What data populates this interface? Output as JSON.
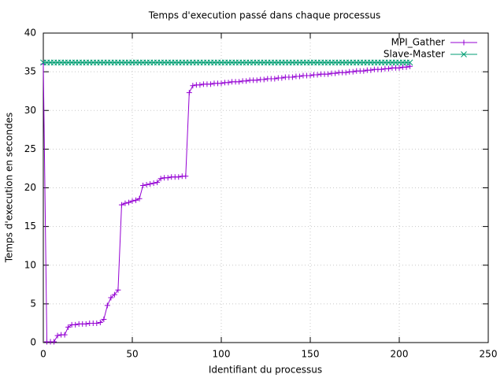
{
  "chart_data": {
    "type": "line",
    "title": "Temps d'execution passé dans chaque processus",
    "x_label": "Identifiant du processus",
    "y_label": "Temps d'execution en secondes",
    "x": [
      0,
      2,
      4,
      6,
      8,
      10,
      12,
      14,
      16,
      18,
      20,
      22,
      24,
      26,
      28,
      30,
      32,
      34,
      36,
      38,
      40,
      42,
      44,
      46,
      48,
      50,
      52,
      54,
      56,
      58,
      60,
      62,
      64,
      66,
      68,
      70,
      72,
      74,
      76,
      78,
      80,
      82,
      84,
      86,
      88,
      90,
      92,
      94,
      96,
      98,
      100,
      102,
      104,
      106,
      108,
      110,
      112,
      114,
      116,
      118,
      120,
      122,
      124,
      126,
      128,
      130,
      132,
      134,
      136,
      138,
      140,
      142,
      144,
      146,
      148,
      150,
      152,
      154,
      156,
      158,
      160,
      162,
      164,
      166,
      168,
      170,
      172,
      174,
      176,
      178,
      180,
      182,
      184,
      186,
      188,
      190,
      192,
      194,
      196,
      198,
      200,
      202,
      204,
      206
    ],
    "series": [
      {
        "name": "MPI_Gather",
        "color": "#9400d3",
        "marker": "plus",
        "values": [
          36,
          0.1,
          0.1,
          0.1,
          0.9,
          1.0,
          1.0,
          2.0,
          2.3,
          2.3,
          2.4,
          2.4,
          2.4,
          2.5,
          2.5,
          2.5,
          2.6,
          3.0,
          4.8,
          5.8,
          6.2,
          6.8,
          17.8,
          18.0,
          18.1,
          18.3,
          18.4,
          18.6,
          20.3,
          20.4,
          20.5,
          20.6,
          20.7,
          21.2,
          21.3,
          21.3,
          21.4,
          21.4,
          21.4,
          21.5,
          21.5,
          32.3,
          33.2,
          33.3,
          33.3,
          33.4,
          33.4,
          33.4,
          33.5,
          33.5,
          33.5,
          33.6,
          33.6,
          33.7,
          33.7,
          33.7,
          33.8,
          33.8,
          33.9,
          33.9,
          33.9,
          34.0,
          34.0,
          34.1,
          34.1,
          34.1,
          34.2,
          34.2,
          34.3,
          34.3,
          34.3,
          34.4,
          34.4,
          34.5,
          34.5,
          34.5,
          34.6,
          34.6,
          34.7,
          34.7,
          34.7,
          34.8,
          34.8,
          34.9,
          34.9,
          34.9,
          35.0,
          35.0,
          35.1,
          35.1,
          35.1,
          35.2,
          35.2,
          35.3,
          35.3,
          35.3,
          35.4,
          35.4,
          35.5,
          35.5,
          35.5,
          35.6,
          35.6,
          35.7
        ]
      },
      {
        "name": "Slave-Master",
        "color": "#009e73",
        "marker": "cross",
        "values": [
          36.2,
          36.2,
          36.2,
          36.2,
          36.2,
          36.2,
          36.2,
          36.2,
          36.2,
          36.2,
          36.2,
          36.2,
          36.2,
          36.2,
          36.2,
          36.2,
          36.2,
          36.2,
          36.2,
          36.2,
          36.2,
          36.2,
          36.2,
          36.2,
          36.2,
          36.2,
          36.2,
          36.2,
          36.2,
          36.2,
          36.2,
          36.2,
          36.2,
          36.2,
          36.2,
          36.2,
          36.2,
          36.2,
          36.2,
          36.2,
          36.2,
          36.2,
          36.2,
          36.2,
          36.2,
          36.2,
          36.2,
          36.2,
          36.2,
          36.2,
          36.2,
          36.2,
          36.2,
          36.2,
          36.2,
          36.2,
          36.2,
          36.2,
          36.2,
          36.2,
          36.2,
          36.2,
          36.2,
          36.2,
          36.2,
          36.2,
          36.2,
          36.2,
          36.2,
          36.2,
          36.2,
          36.2,
          36.2,
          36.2,
          36.2,
          36.2,
          36.2,
          36.2,
          36.2,
          36.2,
          36.2,
          36.2,
          36.2,
          36.2,
          36.2,
          36.2,
          36.2,
          36.2,
          36.2,
          36.2,
          36.2,
          36.2,
          36.2,
          36.2,
          36.2,
          36.2,
          36.2,
          36.2,
          36.2,
          36.2,
          36.2,
          36.2,
          36.2,
          36.2
        ]
      }
    ],
    "xlim": [
      0,
      250
    ],
    "xticks": [
      0,
      50,
      100,
      150,
      200,
      250
    ],
    "ylim": [
      0,
      40
    ],
    "yticks": [
      0,
      5,
      10,
      15,
      20,
      25,
      30,
      35,
      40
    ],
    "grid": true,
    "legend": "top-right"
  }
}
